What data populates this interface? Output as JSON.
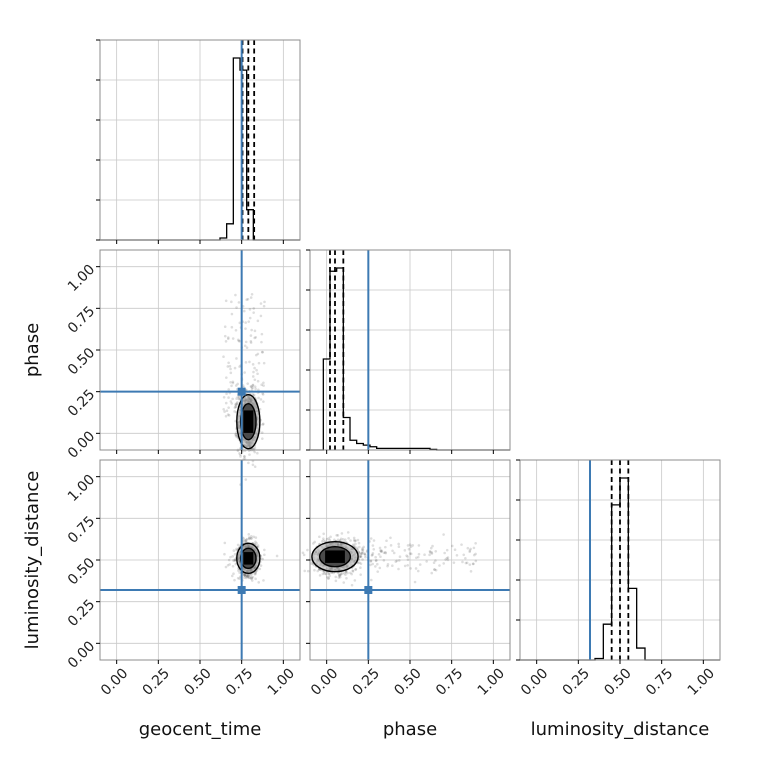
{
  "chart_data": {
    "type": "corner",
    "parameters": [
      "geocent_time",
      "phase",
      "luminosity_distance"
    ],
    "axis_range": [
      -0.1,
      1.1
    ],
    "ticks": [
      0.0,
      0.25,
      0.5,
      0.75,
      1.0
    ],
    "tick_labels": [
      "0.00",
      "0.25",
      "0.50",
      "0.75",
      "1.00"
    ],
    "grid": true,
    "truths": {
      "geocent_time": 0.75,
      "phase": 0.25,
      "luminosity_distance": 0.32
    },
    "colors": {
      "truth": "#3d7ab3",
      "hist": "#000000",
      "grid": "#c8c8c8"
    },
    "histograms": {
      "geocent_time": {
        "bin_edges": [
          0.62,
          0.66,
          0.7,
          0.74,
          0.78,
          0.82,
          0.86,
          0.9
        ],
        "counts": [
          0.01,
          0.08,
          0.9,
          0.84,
          0.15,
          0.0,
          0.0
        ],
        "quantiles": [
          0.755,
          0.79,
          0.825
        ]
      },
      "phase": {
        "bin_edges": [
          -0.02,
          0.02,
          0.06,
          0.1,
          0.14,
          0.18,
          0.22,
          0.26,
          0.3,
          0.34,
          0.38,
          0.42,
          0.46,
          0.5,
          0.54,
          0.58,
          0.62,
          0.66
        ],
        "counts": [
          0.28,
          0.55,
          0.56,
          0.1,
          0.03,
          0.02,
          0.015,
          0.01,
          0.005,
          0.005,
          0.005,
          0.005,
          0.005,
          0.005,
          0.005,
          0.005,
          0.002
        ],
        "quantiles": [
          0.02,
          0.05,
          0.1
        ]
      },
      "luminosity_distance": {
        "bin_edges": [
          0.35,
          0.4,
          0.45,
          0.5,
          0.55,
          0.6,
          0.65,
          0.7
        ],
        "counts": [
          0.005,
          0.12,
          0.52,
          0.61,
          0.24,
          0.04,
          0.0
        ],
        "quantiles": [
          0.45,
          0.5,
          0.55
        ]
      }
    },
    "scatter_2d": [
      {
        "x": "geocent_time",
        "y": "phase",
        "center": [
          0.79,
          0.07
        ],
        "spread": [
          0.03,
          0.09
        ],
        "n": 900,
        "outliers": 140
      },
      {
        "x": "geocent_time",
        "y": "luminosity_distance",
        "center": [
          0.79,
          0.51
        ],
        "spread": [
          0.03,
          0.05
        ],
        "n": 900,
        "outliers": 40
      },
      {
        "x": "phase",
        "y": "luminosity_distance",
        "center": [
          0.05,
          0.52
        ],
        "spread": [
          0.06,
          0.05
        ],
        "n": 900,
        "outliers": 160
      }
    ]
  }
}
